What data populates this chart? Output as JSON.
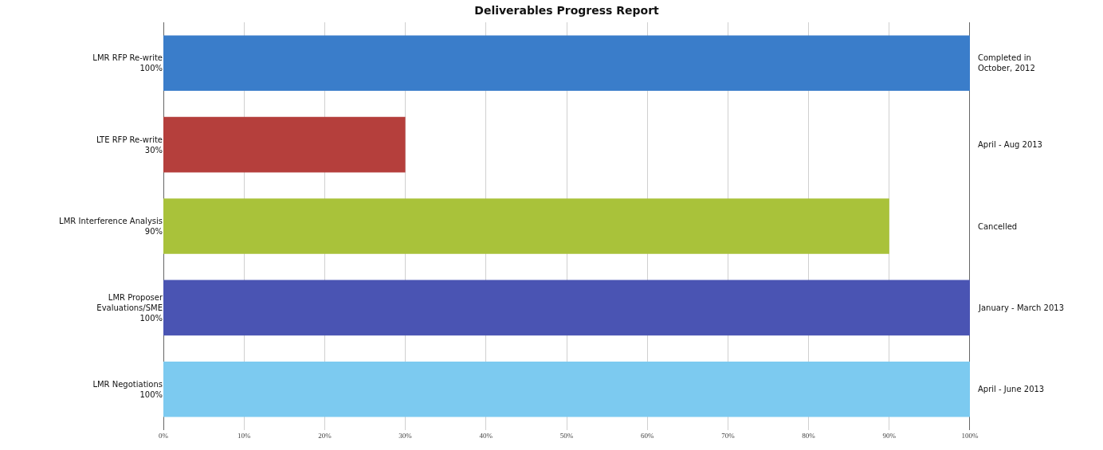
{
  "chart_data": {
    "type": "bar",
    "orientation": "horizontal",
    "title": "Deliverables Progress Report",
    "categories": [
      "LMR RFP Re-write\n100%",
      "LTE RFP Re-write\n30%",
      "LMR Interference Analysis\n90%",
      "LMR Proposer\nEvaluations/SME\n100%",
      "LMR Negotiations\n100%"
    ],
    "values": [
      100,
      30,
      90,
      100,
      100
    ],
    "colors": [
      "#3a7dca",
      "#b53f3c",
      "#a9c23a",
      "#4a54b3",
      "#7ccaf0"
    ],
    "xlim": [
      0,
      100
    ],
    "xticks": [
      {
        "value": 0,
        "label": "0%"
      },
      {
        "value": 10,
        "label": "10%"
      },
      {
        "value": 20,
        "label": "20%"
      },
      {
        "value": 30,
        "label": "30%"
      },
      {
        "value": 40,
        "label": "40%"
      },
      {
        "value": 50,
        "label": "50%"
      },
      {
        "value": 60,
        "label": "60%"
      },
      {
        "value": 70,
        "label": "70%"
      },
      {
        "value": 80,
        "label": "80%"
      },
      {
        "value": 90,
        "label": "90%"
      },
      {
        "value": 100,
        "label": "100%"
      }
    ],
    "grid": "x",
    "annotations": [
      "Completed in\nOctober, 2012",
      "April - Aug 2013",
      "Cancelled",
      "January - March 2013",
      "April - June 2013"
    ]
  }
}
